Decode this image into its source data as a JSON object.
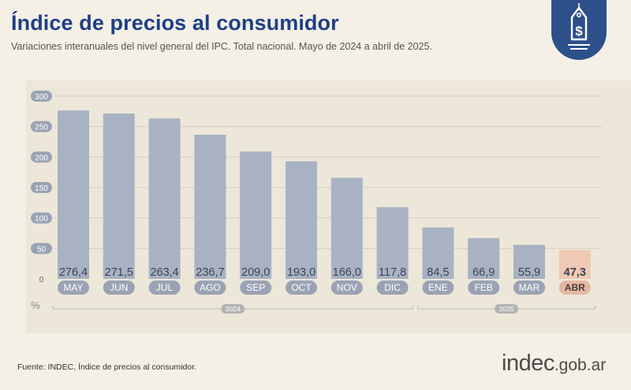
{
  "header": {
    "title": "Índice de precios al consumidor",
    "subtitle": "Variaciones interanuales del nivel general del IPC. Total nacional. Mayo de 2024 a abril de 2025."
  },
  "footer": {
    "source": "Fuente: INDEC, Índice de precios al consumidor.",
    "logo_main": "indec",
    "logo_suffix": ".gob.ar"
  },
  "icons": {
    "badge": "price-tag-dollar-icon"
  },
  "colors": {
    "title": "#1f3f86",
    "bar": "#a8b2c3",
    "bar_highlight": "#efc9b4",
    "label_highlight": "#e4b9a4",
    "badge": "#2d4f8a",
    "axis_pill": "#9aa3b4"
  },
  "chart_data": {
    "type": "bar",
    "title": "Índice de precios al consumidor",
    "ylabel": "%",
    "ylim": [
      0,
      300
    ],
    "yticks": [
      0,
      50,
      100,
      150,
      200,
      250,
      300
    ],
    "grid": true,
    "categories": [
      "MAY",
      "JUN",
      "JUL",
      "AGO",
      "SEP",
      "OCT",
      "NOV",
      "DIC",
      "ENE",
      "FEB",
      "MAR",
      "ABR"
    ],
    "values": [
      276.4,
      271.5,
      263.4,
      236.7,
      209.0,
      193.0,
      166.0,
      117.8,
      84.5,
      66.9,
      55.9,
      47.3
    ],
    "value_labels": [
      "276,4",
      "271,5",
      "263,4",
      "236,7",
      "209,0",
      "193,0",
      "166,0",
      "117,8",
      "84,5",
      "66,9",
      "55,9",
      "47,3"
    ],
    "highlight_index": 11,
    "year_groups": [
      {
        "label": "2024",
        "start": 0,
        "end": 7
      },
      {
        "label": "2025",
        "start": 8,
        "end": 11
      }
    ]
  }
}
